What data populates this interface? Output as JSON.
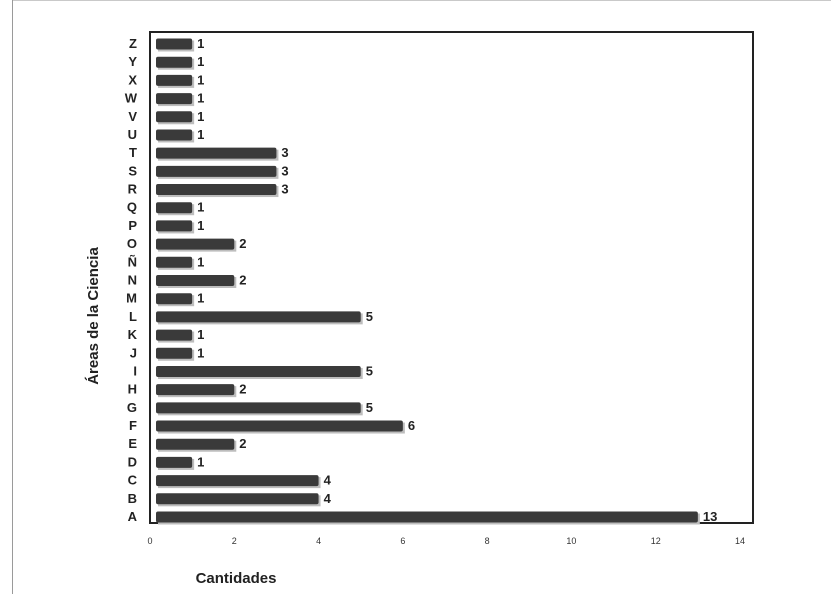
{
  "chart_data": {
    "type": "bar",
    "orientation": "horizontal",
    "categories": [
      "A",
      "B",
      "C",
      "D",
      "E",
      "F",
      "G",
      "H",
      "I",
      "J",
      "K",
      "L",
      "M",
      "N",
      "Ñ",
      "O",
      "P",
      "Q",
      "R",
      "S",
      "T",
      "U",
      "V",
      "W",
      "X",
      "Y",
      "Z"
    ],
    "values": [
      13,
      4,
      4,
      1,
      2,
      6,
      5,
      2,
      5,
      1,
      1,
      5,
      1,
      2,
      1,
      2,
      1,
      1,
      3,
      3,
      3,
      1,
      1,
      1,
      1,
      1,
      1
    ],
    "xlabel": "Cantidades",
    "ylabel": "Áreas de la Ciencia",
    "xlim": [
      0,
      14
    ],
    "xticks": [
      0,
      2,
      4,
      6,
      8,
      10,
      12,
      14
    ],
    "grid": false,
    "bar_color": "#3a3a3a"
  }
}
